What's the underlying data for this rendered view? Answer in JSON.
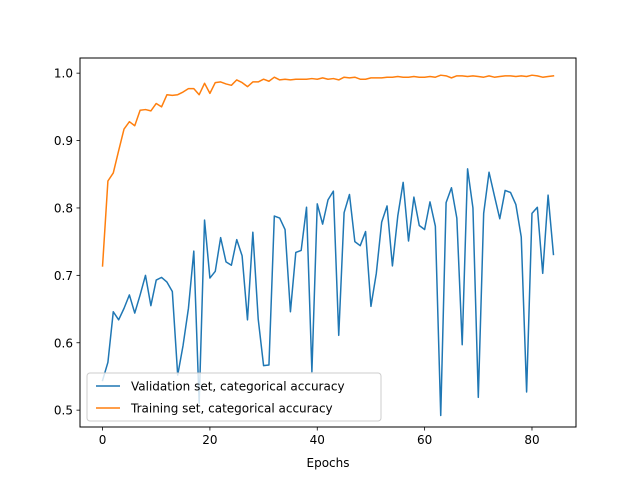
{
  "chart_data": {
    "type": "line",
    "title": "",
    "xlabel": "Epochs",
    "ylabel": "",
    "xlim": [
      -4.2,
      88.2
    ],
    "ylim": [
      0.475,
      1.0225
    ],
    "x_ticks": [
      0,
      20,
      40,
      60,
      80
    ],
    "y_ticks": [
      0.5,
      0.6,
      0.7,
      0.8,
      0.9,
      1.0
    ],
    "x_tick_labels": [
      "0",
      "20",
      "40",
      "60",
      "80"
    ],
    "y_tick_labels": [
      "0.5",
      "0.6",
      "0.7",
      "0.8",
      "0.9",
      "1.0"
    ],
    "grid": false,
    "legend_position": "lower-left",
    "x": [
      0,
      1,
      2,
      3,
      4,
      5,
      6,
      7,
      8,
      9,
      10,
      11,
      12,
      13,
      14,
      15,
      16,
      17,
      18,
      19,
      20,
      21,
      22,
      23,
      24,
      25,
      26,
      27,
      28,
      29,
      30,
      31,
      32,
      33,
      34,
      35,
      36,
      37,
      38,
      39,
      40,
      41,
      42,
      43,
      44,
      45,
      46,
      47,
      48,
      49,
      50,
      51,
      52,
      53,
      54,
      55,
      56,
      57,
      58,
      59,
      60,
      61,
      62,
      63,
      64,
      65,
      66,
      67,
      68,
      69,
      70,
      71,
      72,
      73,
      74,
      75,
      76,
      77,
      78,
      79,
      80,
      81,
      82,
      83,
      84
    ],
    "series": [
      {
        "name": "Validation set, categorical accuracy",
        "color": "#1f77b4",
        "values": [
          0.544,
          0.571,
          0.646,
          0.634,
          0.651,
          0.671,
          0.644,
          0.671,
          0.7,
          0.655,
          0.693,
          0.697,
          0.69,
          0.676,
          0.552,
          0.596,
          0.651,
          0.736,
          0.51,
          0.782,
          0.696,
          0.706,
          0.756,
          0.72,
          0.715,
          0.753,
          0.729,
          0.634,
          0.764,
          0.635,
          0.566,
          0.567,
          0.788,
          0.785,
          0.768,
          0.646,
          0.734,
          0.737,
          0.801,
          0.557,
          0.806,
          0.776,
          0.812,
          0.825,
          0.611,
          0.793,
          0.82,
          0.75,
          0.744,
          0.765,
          0.654,
          0.703,
          0.779,
          0.803,
          0.714,
          0.788,
          0.838,
          0.751,
          0.816,
          0.774,
          0.768,
          0.809,
          0.773,
          0.492,
          0.808,
          0.83,
          0.785,
          0.597,
          0.858,
          0.8,
          0.519,
          0.792,
          0.853,
          0.818,
          0.784,
          0.826,
          0.823,
          0.805,
          0.757,
          0.527,
          0.792,
          0.801,
          0.703,
          0.819,
          0.731
        ]
      },
      {
        "name": "Training set, categorical accuracy",
        "color": "#ff7f0e",
        "values": [
          0.714,
          0.84,
          0.852,
          0.885,
          0.917,
          0.928,
          0.922,
          0.945,
          0.946,
          0.944,
          0.955,
          0.95,
          0.968,
          0.967,
          0.968,
          0.972,
          0.977,
          0.977,
          0.968,
          0.985,
          0.97,
          0.986,
          0.987,
          0.984,
          0.982,
          0.99,
          0.986,
          0.98,
          0.987,
          0.987,
          0.991,
          0.988,
          0.994,
          0.99,
          0.991,
          0.99,
          0.991,
          0.991,
          0.991,
          0.992,
          0.991,
          0.993,
          0.991,
          0.992,
          0.99,
          0.994,
          0.993,
          0.994,
          0.991,
          0.991,
          0.993,
          0.993,
          0.993,
          0.994,
          0.994,
          0.995,
          0.994,
          0.994,
          0.995,
          0.994,
          0.994,
          0.995,
          0.994,
          0.997,
          0.996,
          0.993,
          0.996,
          0.996,
          0.995,
          0.996,
          0.995,
          0.994,
          0.996,
          0.994,
          0.995,
          0.996,
          0.996,
          0.995,
          0.996,
          0.995,
          0.997,
          0.996,
          0.994,
          0.995,
          0.996
        ]
      }
    ]
  }
}
